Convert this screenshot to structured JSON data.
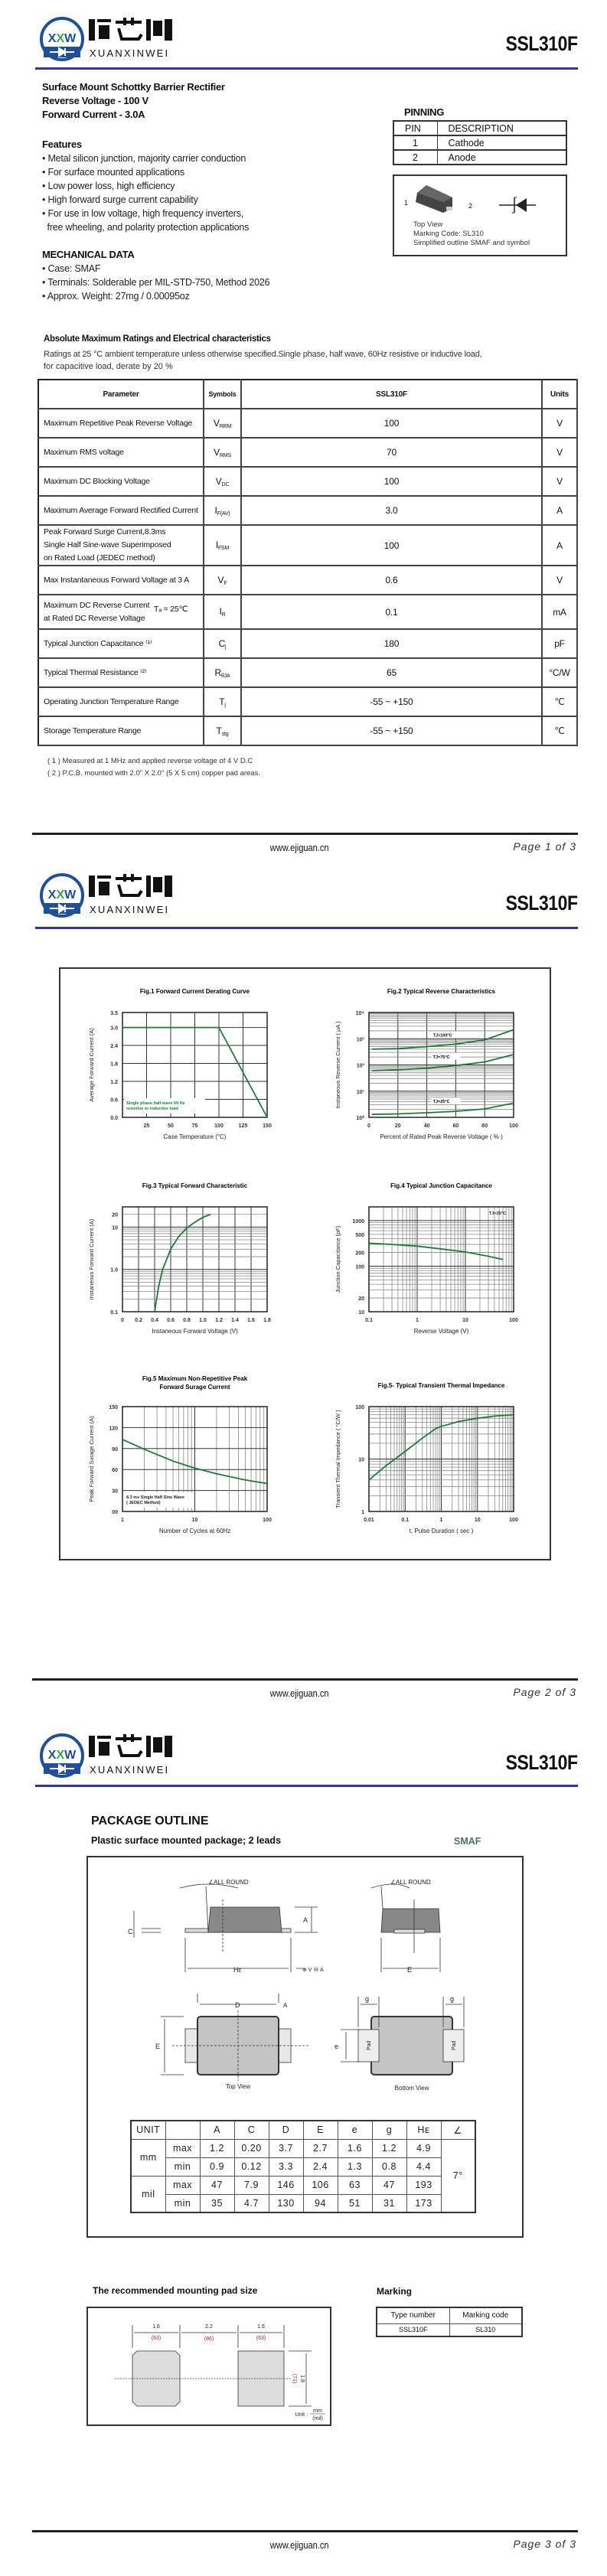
{
  "header": {
    "brand_cn": "烜芯微",
    "brand_en": "XUANXINWEI",
    "logo_mark": "XXW",
    "part_number": "SSL310F",
    "blue": "#333399",
    "logo_blue": "#1f4e9a",
    "logo_green": "#3aa84a"
  },
  "footer": {
    "website": "www.ejiguan.cn",
    "pages": [
      "Page  1  of  3",
      "Page  2  of  3",
      "Page  3  of  3"
    ]
  },
  "page1": {
    "subtitle": [
      "Surface Mount Schottky Barrier Rectifier",
      "Reverse Voltage - 100 V",
      "Forward Current - 3.0A"
    ],
    "features_title": "Features",
    "features": [
      "• Metal silicon junction, majority carrier conduction",
      "• For surface mounted applications",
      "• Low power loss, high efficiency",
      "• High forward surge current capability",
      "• For use in low voltage, high frequency inverters,",
      "  free wheeling, and polarity protection applications"
    ],
    "mech_title": "MECHANICAL DATA",
    "mech": [
      "• Case: SMAF",
      "• Terminals: Solderable per MIL-STD-750, Method 2026",
      "• Approx. Weight: 27mg  /  0.00095oz"
    ],
    "pinning": {
      "title": "PINNING",
      "headers": [
        "PIN",
        "DESCRIPTION"
      ],
      "rows": [
        [
          "1",
          "Cathode"
        ],
        [
          "2",
          "Anode"
        ]
      ],
      "fig_pin1": "1",
      "fig_pin2": "2",
      "caption": [
        "Top View",
        "Marking Code:  SL310",
        "Simplified outline SMAF and symbol"
      ]
    },
    "ratings_title": "Absolute Maximum Ratings and Electrical characteristics",
    "ratings_note": [
      "Ratings at 25 °C ambient temperature unless otherwise specified.Single phase, half wave, 60Hz resistive or inductive load,",
      "for capacitive load, derate by 20 %"
    ],
    "table": {
      "headers": [
        "Parameter",
        "Symbols",
        "SSL310F",
        "Units"
      ],
      "rows": [
        {
          "param": [
            "Maximum Repetitive Peak Reverse Voltage"
          ],
          "sym": "V",
          "sub": "RRM",
          "value": "100",
          "unit": "V"
        },
        {
          "param": [
            "Maximum RMS voltage"
          ],
          "sym": "V",
          "sub": "RMS",
          "value": "70",
          "unit": "V"
        },
        {
          "param": [
            "Maximum DC Blocking Voltage"
          ],
          "sym": "V",
          "sub": "DC",
          "value": "100",
          "unit": "V"
        },
        {
          "param": [
            "Maximum Average Forward Rectified Current"
          ],
          "sym": "I",
          "sub": "F(AV)",
          "value": "3.0",
          "unit": "A"
        },
        {
          "param": [
            "Peak Forward Surge Current,8.3ms",
            "Single Half Sine-wave Superimposed",
            "on Rated Load (JEDEC method)"
          ],
          "sym": "I",
          "sub": "FSM",
          "value": "100",
          "unit": "A"
        },
        {
          "param": [
            "Max Instantaneous Forward Voltage at 3 A"
          ],
          "sym": "V",
          "sub": "F",
          "value": "0.6",
          "unit": "V"
        },
        {
          "param": [
            "Maximum DC Reverse Current",
            "at Rated DC Reverse Voltage"
          ],
          "condition": "Tₐ = 25℃",
          "sym": "I",
          "sub": "R",
          "value": "0.1",
          "unit": "mA"
        },
        {
          "param": [
            "Typical Junction Capacitance ⁽¹⁾"
          ],
          "sym": "C",
          "sub": "j",
          "value": "180",
          "unit": "pF"
        },
        {
          "param": [
            "Typical Thermal Resistance ⁽²⁾"
          ],
          "sym": "R",
          "sub": "θJA",
          "value": "65",
          "unit": "°C/W"
        },
        {
          "param": [
            "Operating Junction Temperature Range"
          ],
          "sym": "T",
          "sub": "j",
          "value": "-55 ~ +150",
          "unit": "℃"
        },
        {
          "param": [
            "Storage Temperature Range"
          ],
          "sym": "T",
          "sub": "stg",
          "value": "-55 ~ +150",
          "unit": "℃"
        }
      ]
    },
    "footnotes": [
      "( 1 ) Measured at 1 MHz and applied reverse voltage of 4 V D.C",
      "( 2 ) P.C.B. mounted with 2.0\" X 2.0\" (5 X 5 cm) copper pad areas."
    ]
  },
  "chart_data": [
    {
      "type": "line",
      "title_lines": [
        "Fig.1  Forward Current Derating Curve"
      ],
      "xlabel": "Case Temperature (°C)",
      "ylabel": "Average Forward Current  (A)",
      "x_axis": {
        "scale": "linear",
        "range": [
          0,
          150
        ],
        "ticks": [
          25,
          50,
          75,
          100,
          125,
          150
        ],
        "tick_labels": [
          "25",
          "50",
          "75",
          "100",
          "125",
          "150"
        ]
      },
      "y_axis": {
        "scale": "linear",
        "range": [
          0,
          3.5
        ],
        "ticks": [
          0,
          0.6,
          1.2,
          1.8,
          2.4,
          3.0,
          3.5
        ],
        "tick_labels": [
          "0.0",
          "0.6",
          "1.2",
          "1.8",
          "2.4",
          "3.0",
          "3.5"
        ]
      },
      "grid": true,
      "annotation": [
        "Single phase half-wave 60 Hz",
        "resistive or inductive load"
      ],
      "series": [
        {
          "points": [
            [
              0,
              3.0
            ],
            [
              100,
              3.0
            ],
            [
              150,
              0
            ]
          ]
        }
      ]
    },
    {
      "type": "line",
      "title_lines": [
        "Fig.2  Typical Reverse Characteristics"
      ],
      "xlabel": "Percent of Rated Peak Reverse Voltage ( % )",
      "ylabel": "Instaneous Reverse Current ( μA )",
      "x_axis": {
        "scale": "linear",
        "range": [
          0,
          100
        ],
        "ticks": [
          0,
          20,
          40,
          60,
          80,
          100
        ],
        "tick_labels": [
          "0",
          "20",
          "40",
          "60",
          "80",
          "100"
        ]
      },
      "y_axis": {
        "scale": "log",
        "range": [
          1,
          10000
        ],
        "ticks": [
          1,
          10,
          100,
          1000,
          10000
        ],
        "tick_labels": [
          "10⁰",
          "10¹",
          "10²",
          "10³",
          "10⁴"
        ]
      },
      "grid": true,
      "series": [
        {
          "name": "TJ=100°C",
          "points": [
            [
              2,
              400
            ],
            [
              20,
              420
            ],
            [
              40,
              500
            ],
            [
              60,
              620
            ],
            [
              80,
              900
            ],
            [
              100,
              2200
            ]
          ]
        },
        {
          "name": "TJ=75°C",
          "points": [
            [
              2,
              60
            ],
            [
              20,
              65
            ],
            [
              40,
              75
            ],
            [
              60,
              95
            ],
            [
              80,
              130
            ],
            [
              100,
              250
            ]
          ]
        },
        {
          "name": "TJ=25°C",
          "points": [
            [
              2,
              1.3
            ],
            [
              20,
              1.35
            ],
            [
              40,
              1.5
            ],
            [
              60,
              1.7
            ],
            [
              80,
              2.1
            ],
            [
              100,
              3.5
            ]
          ]
        }
      ]
    },
    {
      "type": "line",
      "title_lines": [
        "Fig.3  Typical Forward Characteristic"
      ],
      "xlabel": "Instaneous Forward Voltage (V)",
      "ylabel": "Instaneous Forward Current  (A)",
      "x_axis": {
        "scale": "linear",
        "range": [
          0,
          1.8
        ],
        "ticks": [
          0,
          0.2,
          0.4,
          0.6,
          0.8,
          1.0,
          1.2,
          1.4,
          1.6,
          1.8
        ],
        "tick_labels": [
          "0",
          "0.2",
          "0.4",
          "0.6",
          "0.8",
          "1.0",
          "1.2",
          "1.4",
          "1.6",
          "1.8"
        ]
      },
      "y_axis": {
        "scale": "log",
        "range": [
          0.1,
          30
        ],
        "ticks": [
          0.1,
          1,
          10,
          20
        ],
        "tick_labels": [
          "0.1",
          "1.0",
          "10",
          "20"
        ]
      },
      "grid": true,
      "series": [
        {
          "points": [
            [
              0.4,
              0.1
            ],
            [
              0.45,
              0.4
            ],
            [
              0.5,
              1.0
            ],
            [
              0.6,
              3
            ],
            [
              0.7,
              6
            ],
            [
              0.8,
              9.5
            ],
            [
              0.9,
              13
            ],
            [
              1.0,
              17
            ],
            [
              1.1,
              20
            ]
          ]
        }
      ]
    },
    {
      "type": "line",
      "title_lines": [
        "Fig.4  Typical Junction Capacitance"
      ],
      "xlabel": "Reverse  Voltage (V)",
      "ylabel": "Junction Capacitance (pF)",
      "x_axis": {
        "scale": "log",
        "range": [
          0.1,
          100
        ],
        "ticks": [
          0.1,
          1,
          10,
          100
        ],
        "tick_labels": [
          "0.1",
          "1",
          "10",
          "100"
        ]
      },
      "y_axis": {
        "scale": "log",
        "range": [
          10,
          2000
        ],
        "ticks": [
          10,
          20,
          100,
          200,
          500,
          1000
        ],
        "tick_labels": [
          "10",
          "20",
          "100",
          "200",
          "500",
          "1000"
        ]
      },
      "grid": true,
      "annotation": [
        "TJ=25°C"
      ],
      "series": [
        {
          "points": [
            [
              0.1,
              320
            ],
            [
              0.3,
              300
            ],
            [
              1,
              275
            ],
            [
              3,
              240
            ],
            [
              10,
              205
            ],
            [
              30,
              165
            ],
            [
              60,
              140
            ]
          ]
        }
      ]
    },
    {
      "type": "line",
      "title_lines": [
        "Fig.5  Maximum Non-Repetitive Peak",
        "Forward Surage Current"
      ],
      "xlabel": "Number of Cycles at 60Hz",
      "ylabel": "Peak Forward Surage Current (A)",
      "x_axis": {
        "scale": "log",
        "range": [
          1,
          100
        ],
        "ticks": [
          1,
          10,
          100
        ],
        "tick_labels": [
          "1",
          "10",
          "100"
        ]
      },
      "y_axis": {
        "scale": "linear",
        "range": [
          0,
          150
        ],
        "ticks": [
          0,
          30,
          60,
          90,
          120,
          150
        ],
        "tick_labels": [
          "00",
          "30",
          "60",
          "90",
          "120",
          "150"
        ]
      },
      "grid": true,
      "annotation": [
        "8.3 ms Single Half Sine Wave",
        "( JEDEC Method)"
      ],
      "series": [
        {
          "points": [
            [
              1,
              103
            ],
            [
              2,
              89
            ],
            [
              5,
              72
            ],
            [
              10,
              62
            ],
            [
              20,
              54
            ],
            [
              50,
              45
            ],
            [
              100,
              40
            ]
          ]
        }
      ]
    },
    {
      "type": "line",
      "title_lines": [
        "Fig.5- Typical Transient Thermal Impedance"
      ],
      "xlabel": "t, Pulse Duration ( sec )",
      "ylabel": "Transient Thermal Impedance  ( °C/W )",
      "x_axis": {
        "scale": "log",
        "range": [
          0.01,
          100
        ],
        "ticks": [
          0.01,
          0.1,
          1,
          10,
          100
        ],
        "tick_labels": [
          "0.01",
          "0.1",
          "1",
          "10",
          "100"
        ]
      },
      "y_axis": {
        "scale": "log",
        "range": [
          1,
          100
        ],
        "ticks": [
          1,
          10,
          100
        ],
        "tick_labels": [
          "1",
          "10",
          "100"
        ]
      },
      "grid": true,
      "series": [
        {
          "points": [
            [
              0.01,
              4
            ],
            [
              0.03,
              7.5
            ],
            [
              0.1,
              14
            ],
            [
              0.3,
              25
            ],
            [
              0.7,
              38
            ],
            [
              1,
              42
            ],
            [
              3,
              52
            ],
            [
              10,
              60
            ],
            [
              30,
              66
            ],
            [
              100,
              70
            ]
          ]
        }
      ]
    }
  ],
  "curve_color": "#1e7a3c",
  "page3": {
    "title": "PACKAGE  OUTLINE",
    "subtitle": "Plastic surface mounted package; 2 leads",
    "package": "SMAF",
    "package_color": "#4a7070",
    "labels": {
      "all_round": "∠ALL ROUND",
      "A": "A",
      "C": "C",
      "HE": "H",
      "HE_sub": "E",
      "E": "E",
      "D": "D",
      "A_ref": "A",
      "g": "g",
      "e": "e",
      "pad": "Pad",
      "top_view": "Top View",
      "bottom_view": "Bottom View",
      "tol": "⊕ V Ⓜ A"
    },
    "dims": {
      "headers": [
        "UNIT",
        "",
        "A",
        "C",
        "D",
        "E",
        "e",
        "g",
        "Hᴇ",
        "∠"
      ],
      "rows": [
        [
          "mm",
          "max",
          "1.2",
          "0.20",
          "3.7",
          "2.7",
          "1.6",
          "1.2",
          "4.9"
        ],
        [
          "",
          "min",
          "0.9",
          "0.12",
          "3.3",
          "2.4",
          "1.3",
          "0.8",
          "4.4"
        ],
        [
          "mil",
          "max",
          "47",
          "7.9",
          "146",
          "106",
          "63",
          "47",
          "193"
        ],
        [
          "",
          "min",
          "35",
          "4.7",
          "130",
          "94",
          "51",
          "31",
          "173"
        ]
      ],
      "angle": "7°"
    },
    "pad_title": "The recommended mounting pad size",
    "pad": {
      "w1": "1.6",
      "w1_mil": "(63)",
      "gap": "2.2",
      "gap_mil": "(86)",
      "w2": "1.6",
      "w2_mil": "(63)",
      "h": "1.8",
      "h_mil": "(71)",
      "unit": "Unit :",
      "unit_mm": "mm",
      "unit_mil": "(mil)"
    },
    "marking_title": "Marking",
    "marking": {
      "headers": [
        "Type number",
        "Marking code"
      ],
      "row": [
        "SSL310F",
        "SL310"
      ]
    }
  }
}
